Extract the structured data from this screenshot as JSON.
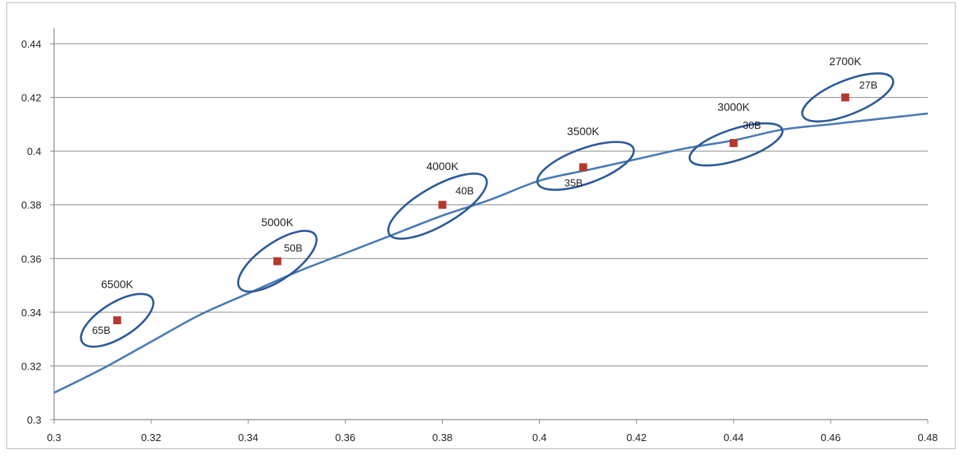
{
  "colors": {
    "curve": "#4a7ab5",
    "ellipse": "#2c5a98",
    "marker": "#b5382f",
    "grid": "#8c8c8c",
    "axis": "#8c8c8c",
    "text": "#222222"
  },
  "chart_data": {
    "type": "scatter",
    "title": "",
    "xlabel": "",
    "ylabel": "",
    "xlim": [
      0.3,
      0.48
    ],
    "ylim": [
      0.3,
      0.44
    ],
    "x_ticks": [
      "0.3",
      "0.32",
      "0.34",
      "0.36",
      "0.38",
      "0.4",
      "0.42",
      "0.44",
      "0.46",
      "0.48"
    ],
    "y_ticks": [
      "0.3",
      "0.32",
      "0.34",
      "0.36",
      "0.38",
      "0.4",
      "0.42",
      "0.44"
    ],
    "grid": "horizontal",
    "legend": "none",
    "series": [
      {
        "type": "scatter",
        "points": [
          {
            "label": "65B",
            "x": 0.313,
            "y": 0.337
          },
          {
            "label": "50B",
            "x": 0.346,
            "y": 0.359
          },
          {
            "label": "40B",
            "x": 0.38,
            "y": 0.38
          },
          {
            "label": "35B",
            "x": 0.409,
            "y": 0.394
          },
          {
            "label": "30B",
            "x": 0.44,
            "y": 0.403
          },
          {
            "label": "27B",
            "x": 0.463,
            "y": 0.42
          }
        ]
      },
      {
        "type": "line",
        "x": [
          0.3,
          0.31,
          0.32,
          0.33,
          0.34,
          0.35,
          0.36,
          0.37,
          0.38,
          0.39,
          0.4,
          0.41,
          0.42,
          0.43,
          0.44,
          0.45,
          0.46,
          0.47,
          0.48
        ],
        "y": [
          0.31,
          0.319,
          0.329,
          0.339,
          0.347,
          0.355,
          0.362,
          0.369,
          0.376,
          0.382,
          0.389,
          0.393,
          0.397,
          0.401,
          0.404,
          0.408,
          0.41,
          0.412,
          0.414
        ]
      }
    ],
    "annotations": [
      {
        "text": "6500K",
        "x": 0.313,
        "y": 0.349
      },
      {
        "text": "5000K",
        "x": 0.346,
        "y": 0.372
      },
      {
        "text": "4000K",
        "x": 0.38,
        "y": 0.393
      },
      {
        "text": "3500K",
        "x": 0.409,
        "y": 0.406
      },
      {
        "text": "3000K",
        "x": 0.44,
        "y": 0.415
      },
      {
        "text": "2700K",
        "x": 0.463,
        "y": 0.432
      }
    ],
    "tolerance_ellipses": [
      {
        "label": "6500K",
        "cx": 0.313,
        "cy": 0.337,
        "rx": 0.0085,
        "ry": 0.0065,
        "tilt": -32
      },
      {
        "label": "5000K",
        "cx": 0.346,
        "cy": 0.359,
        "rx": 0.0095,
        "ry": 0.0068,
        "tilt": -35
      },
      {
        "label": "4000K",
        "cx": 0.379,
        "cy": 0.3795,
        "rx": 0.0115,
        "ry": 0.0072,
        "tilt": -30
      },
      {
        "label": "3500K",
        "cx": 0.4095,
        "cy": 0.3945,
        "rx": 0.0105,
        "ry": 0.0065,
        "tilt": -20
      },
      {
        "label": "3000K",
        "cx": 0.4405,
        "cy": 0.4025,
        "rx": 0.01,
        "ry": 0.0058,
        "tilt": -18
      },
      {
        "label": "2700K",
        "cx": 0.4635,
        "cy": 0.42,
        "rx": 0.01,
        "ry": 0.0063,
        "tilt": -22
      }
    ]
  }
}
